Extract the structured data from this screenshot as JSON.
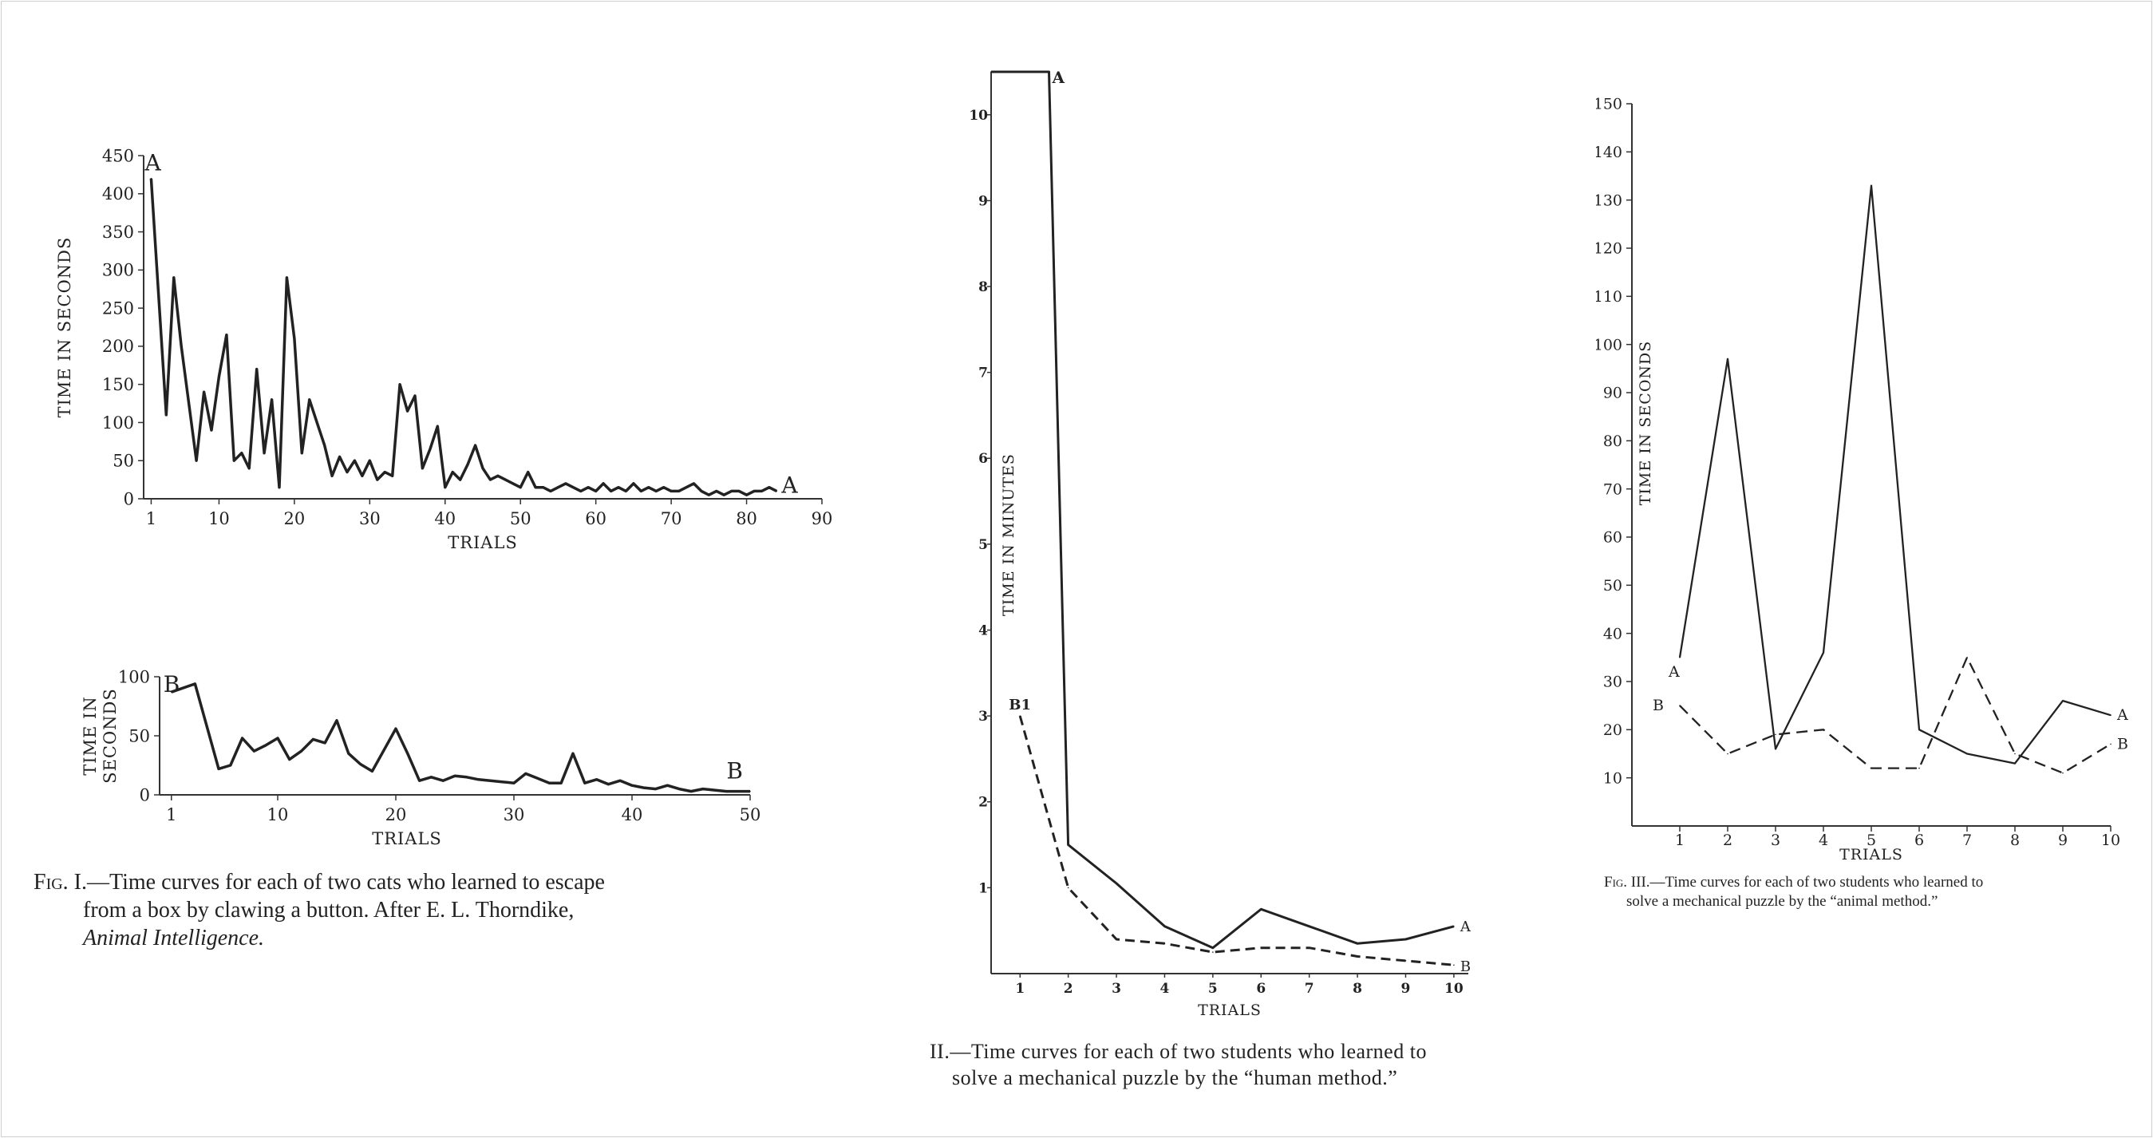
{
  "chart_data": [
    {
      "type": "line",
      "id": "fig1a",
      "series_labels": [
        "A",
        "A"
      ],
      "xlabel": "TRIALS",
      "ylabel": "TIME IN SECONDS",
      "xlim": [
        0,
        90
      ],
      "ylim": [
        0,
        450
      ],
      "xticks": [
        1,
        10,
        20,
        30,
        40,
        50,
        60,
        70,
        80,
        90
      ],
      "yticks": [
        0,
        50,
        100,
        150,
        200,
        250,
        300,
        350,
        400,
        450
      ],
      "series": [
        {
          "x": [
            1,
            3,
            4,
            5,
            7,
            8,
            9,
            10,
            11,
            12,
            13,
            14,
            15,
            16,
            17,
            18,
            19,
            20,
            21,
            22,
            23,
            24,
            25,
            26,
            27,
            28,
            29,
            30,
            31,
            32,
            33,
            34,
            35,
            36,
            37,
            38,
            39,
            40,
            41,
            42,
            43,
            44,
            45,
            46,
            47,
            48,
            49,
            50,
            51,
            52,
            53,
            54,
            55,
            56,
            57,
            58,
            59,
            60,
            61,
            62,
            63,
            64,
            65,
            66,
            67,
            68,
            69,
            70,
            71,
            72,
            73,
            74,
            75,
            76,
            77,
            78,
            79,
            80,
            81,
            82,
            83,
            84
          ],
          "y": [
            420,
            110,
            290,
            200,
            50,
            140,
            90,
            160,
            215,
            50,
            60,
            40,
            170,
            60,
            130,
            15,
            290,
            210,
            60,
            130,
            100,
            70,
            30,
            55,
            35,
            50,
            30,
            50,
            25,
            35,
            30,
            150,
            115,
            135,
            40,
            65,
            95,
            15,
            35,
            25,
            45,
            70,
            40,
            25,
            30,
            25,
            20,
            15,
            35,
            15,
            15,
            10,
            15,
            20,
            15,
            10,
            15,
            10,
            20,
            10,
            15,
            10,
            20,
            10,
            15,
            10,
            15,
            10,
            10,
            15,
            20,
            10,
            5,
            10,
            5,
            10,
            10,
            5,
            10,
            10,
            15,
            10
          ]
        }
      ]
    },
    {
      "type": "line",
      "id": "fig1b",
      "series_labels": [
        "B",
        "B"
      ],
      "xlabel": "TRIALS",
      "ylabel": [
        "TIME IN",
        "SECONDS"
      ],
      "xlim": [
        0,
        50
      ],
      "ylim": [
        0,
        100
      ],
      "xticks": [
        1,
        10,
        20,
        30,
        40,
        50
      ],
      "yticks": [
        0,
        50,
        100
      ],
      "series": [
        {
          "x": [
            1,
            3,
            5,
            6,
            7,
            8,
            9,
            10,
            11,
            12,
            13,
            14,
            15,
            16,
            17,
            18,
            19,
            20,
            21,
            22,
            23,
            24,
            25,
            26,
            27,
            28,
            29,
            30,
            31,
            32,
            33,
            34,
            35,
            36,
            37,
            38,
            39,
            40,
            41,
            42,
            43,
            44,
            45,
            46,
            47,
            48,
            49,
            50
          ],
          "y": [
            87,
            94,
            22,
            25,
            48,
            37,
            42,
            48,
            30,
            37,
            47,
            44,
            63,
            35,
            26,
            20,
            38,
            56,
            35,
            12,
            15,
            12,
            16,
            15,
            13,
            12,
            11,
            10,
            18,
            14,
            10,
            10,
            35,
            10,
            13,
            9,
            12,
            8,
            6,
            5,
            8,
            5,
            3,
            5,
            4,
            3,
            3,
            3
          ]
        }
      ]
    },
    {
      "type": "line",
      "id": "fig2",
      "xlabel": "TRIALS",
      "ylabel": "TIME IN MINUTES",
      "xlim": [
        0.4,
        10.3
      ],
      "ylim": [
        0,
        10.5
      ],
      "xticks": [
        1,
        2,
        3,
        4,
        5,
        6,
        7,
        8,
        9,
        10
      ],
      "yticks": [
        1,
        2,
        3,
        4,
        5,
        6,
        7,
        8,
        9,
        10
      ],
      "series": [
        {
          "name": "A",
          "x": [
            0.4,
            1.6,
            2,
            3,
            4,
            5,
            6,
            7,
            8,
            9,
            10
          ],
          "y": [
            10.5,
            10.5,
            1.5,
            1.05,
            0.55,
            0.3,
            0.75,
            0.55,
            0.35,
            0.4,
            0.55
          ]
        },
        {
          "name": "B",
          "x": [
            1,
            2,
            3,
            4,
            5,
            6,
            7,
            8,
            9,
            10
          ],
          "y": [
            3,
            1,
            0.4,
            0.35,
            0.25,
            0.3,
            0.3,
            0.2,
            0.15,
            0.1
          ]
        }
      ],
      "annotations": [
        "A",
        "B1"
      ]
    },
    {
      "type": "line",
      "id": "fig3",
      "xlabel": "TRIALS",
      "ylabel": "TIME IN SECONDS",
      "xlim": [
        0,
        10
      ],
      "ylim": [
        0,
        150
      ],
      "xticks": [
        1,
        2,
        3,
        4,
        5,
        6,
        7,
        8,
        9,
        10
      ],
      "yticks": [
        10,
        20,
        30,
        40,
        50,
        60,
        70,
        80,
        90,
        100,
        110,
        120,
        130,
        140,
        150
      ],
      "series": [
        {
          "name": "A",
          "x": [
            1,
            2,
            3,
            4,
            5,
            6,
            7,
            8,
            9,
            10
          ],
          "y": [
            35,
            97,
            16,
            36,
            133,
            20,
            15,
            13,
            26,
            23
          ]
        },
        {
          "name": "B",
          "x": [
            1,
            2,
            3,
            4,
            5,
            6,
            7,
            8,
            9,
            10
          ],
          "y": [
            25,
            15,
            19,
            20,
            12,
            12,
            35,
            15,
            11,
            17
          ]
        }
      ]
    }
  ],
  "captions": {
    "fig1": {
      "label": "Fig. I.",
      "line1": "—Time curves for each of two cats who learned to escape",
      "line2": "from a box by clawing a button.  After E. L. Thorndike,",
      "line3": "Animal Intelligence."
    },
    "fig2": {
      "line1": "II.—Time curves for each of two students who learned to",
      "line2": "solve a mechanical puzzle by the “human method.”"
    },
    "fig3": {
      "label": "Fig. III.",
      "line1": "—Time curves for each of two students who learned to",
      "line2": "solve a mechanical puzzle by the “animal method.”"
    }
  }
}
